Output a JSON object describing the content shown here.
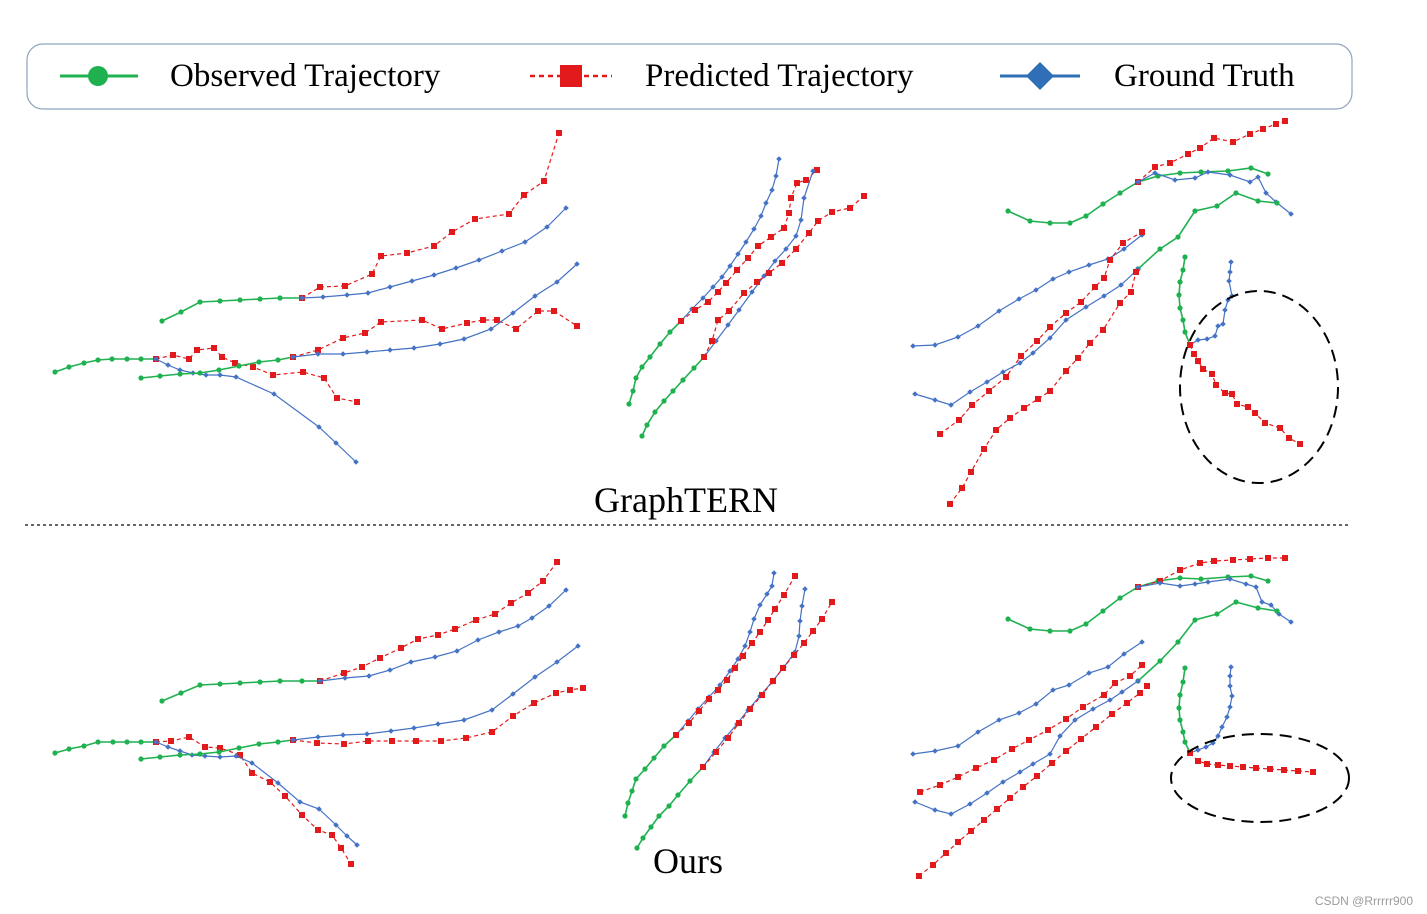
{
  "legend": {
    "observed_label": "Observed Trajectory",
    "predicted_label": "Predicted Trajectory",
    "ground_truth_label": "Ground Truth"
  },
  "panels": {
    "top_caption": "GraphTERN",
    "bottom_caption": "Ours"
  },
  "colors": {
    "observed": "#1fb150",
    "predicted": "#e31a1c",
    "ground_truth": "#4472c4",
    "highlight_ellipse": "#000000",
    "divider": "#333333"
  },
  "watermark": "CSDN @Rrrrrr900"
}
